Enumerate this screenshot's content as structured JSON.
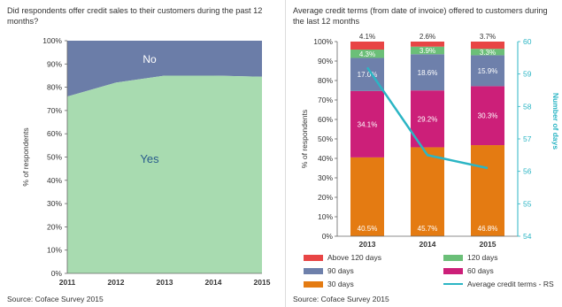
{
  "chart_data": [
    {
      "type": "area",
      "title": "Did respondents offer credit sales to their customers during the past 12 months?",
      "ylabel": "% of respondents",
      "xlabel": "",
      "x": [
        "2011",
        "2012",
        "2013",
        "2014",
        "2015"
      ],
      "yticks": [
        "0%",
        "10%",
        "20%",
        "30%",
        "40%",
        "50%",
        "60%",
        "70%",
        "80%",
        "90%",
        "100%"
      ],
      "ylim": [
        0,
        100
      ],
      "series": [
        {
          "name": "Yes",
          "values": [
            76,
            82,
            85,
            85,
            84.5
          ],
          "color": "#a8dbb0"
        },
        {
          "name": "No",
          "values": [
            24,
            18,
            15,
            15,
            15.5
          ],
          "color": "#6b7da8"
        }
      ],
      "source": "Source: Coface Survey 2015"
    },
    {
      "type": "bar",
      "stacked": true,
      "title": "Average credit terms (from date of invoice) offered to customers during the last 12 months",
      "ylabel": "% of respondents",
      "y2label": "Number of days",
      "categories": [
        "2013",
        "2014",
        "2015"
      ],
      "yticks": [
        "0%",
        "10%",
        "20%",
        "30%",
        "40%",
        "50%",
        "60%",
        "70%",
        "80%",
        "90%",
        "100%"
      ],
      "ylim": [
        0,
        100
      ],
      "y2ticks": [
        "54",
        "55",
        "56",
        "57",
        "58",
        "59",
        "60"
      ],
      "y2lim": [
        54,
        60
      ],
      "series": [
        {
          "name": "30 days",
          "values": [
            40.5,
            45.7,
            46.8
          ],
          "labels": [
            "40.5%",
            "45.7%",
            "46.8%"
          ],
          "color": "#e47b12"
        },
        {
          "name": "60 days",
          "values": [
            34.1,
            29.2,
            30.3
          ],
          "labels": [
            "34.1%",
            "29.2%",
            "30.3%"
          ],
          "color": "#cc1f79"
        },
        {
          "name": "90 days",
          "values": [
            17.0,
            18.6,
            15.9
          ],
          "labels": [
            "17.0%",
            "18.6%",
            "15.9%"
          ],
          "color": "#6e80ab"
        },
        {
          "name": "120 days",
          "values": [
            4.3,
            3.9,
            3.3
          ],
          "labels": [
            "4.3%",
            "3.9%",
            "3.3%"
          ],
          "color": "#6bbf78"
        },
        {
          "name": "Above 120 days",
          "values": [
            4.1,
            2.6,
            3.7
          ],
          "labels": [
            "4.1%",
            "2.6%",
            "3.7%"
          ],
          "color": "#e84545"
        }
      ],
      "line": {
        "name": "Average credit terms - RS",
        "values": [
          59.2,
          56.5,
          56.1
        ],
        "color": "#2bb5c4"
      },
      "source": "Source: Coface Survey 2015"
    }
  ],
  "legend_order": [
    "Above 120 days",
    "120 days",
    "90 days",
    "60 days",
    "30 days",
    "Average credit terms - RS"
  ]
}
